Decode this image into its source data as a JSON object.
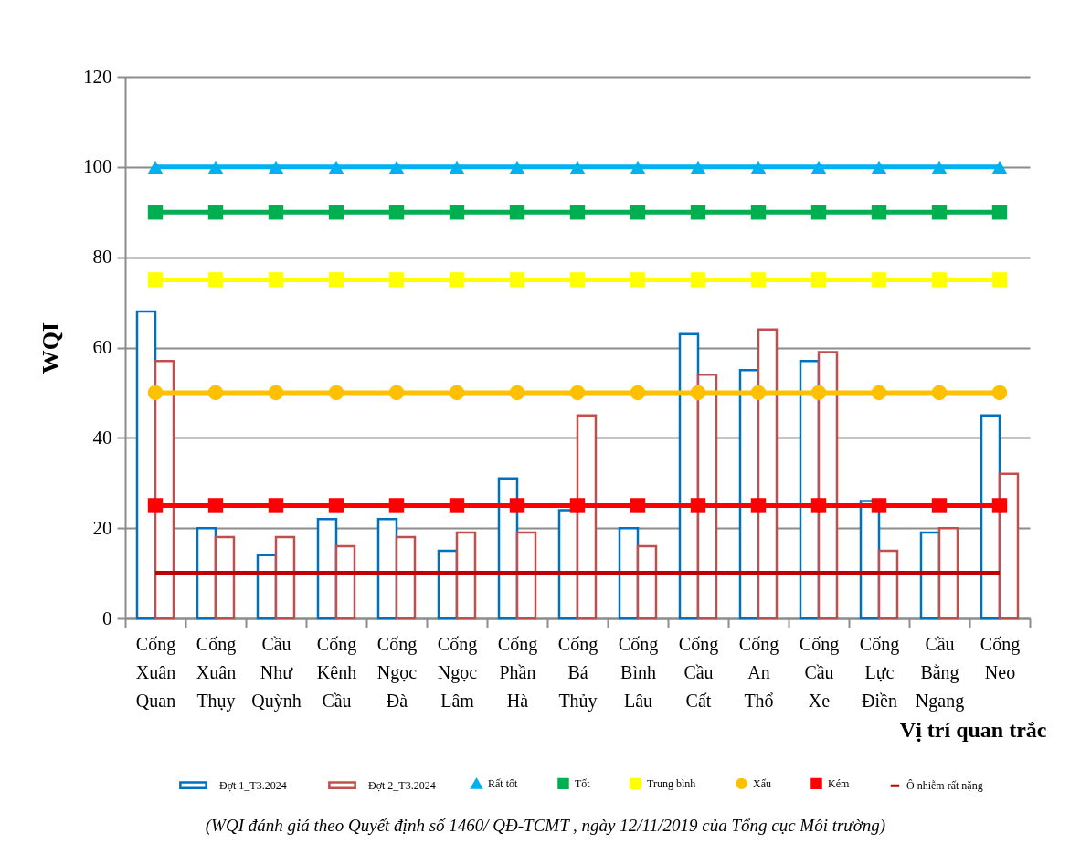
{
  "chart_data": {
    "type": "bar",
    "ylabel": "WQI",
    "xlabel": "Vị trí quan trắc",
    "categories": [
      "Cống Xuân Quan",
      "Cống Xuân Thụy",
      "Cầu Như Quỳnh",
      "Cống Kênh Cầu",
      "Cống Ngọc Đà",
      "Cống Ngọc Lâm",
      "Cống Phần Hà",
      "Cống Bá Thủy",
      "Cống Bình Lâu",
      "Cống Cầu Cất",
      "Cống An Thổ",
      "Cống Cầu Xe",
      "Cống Lực Điền",
      "Cầu Bằng Ngang",
      "Cống Neo"
    ],
    "series": [
      {
        "name": "Đợt 1_T3.2024",
        "color": "#0070c0",
        "values": [
          68,
          20,
          14,
          22,
          22,
          15,
          31,
          24,
          20,
          63,
          55,
          57,
          26,
          19,
          45
        ]
      },
      {
        "name": "Đợt 2_T3.2024",
        "color": "#c0504d",
        "values": [
          57,
          18,
          18,
          16,
          18,
          19,
          19,
          45,
          16,
          54,
          64,
          59,
          15,
          20,
          32
        ]
      },
      {
        "name": "Rất tốt",
        "type": "line",
        "color": "#00b0f0",
        "marker": "triangle",
        "values": [
          100,
          100,
          100,
          100,
          100,
          100,
          100,
          100,
          100,
          100,
          100,
          100,
          100,
          100,
          100
        ]
      },
      {
        "name": "Tốt",
        "type": "line",
        "color": "#00b050",
        "marker": "square",
        "values": [
          90,
          90,
          90,
          90,
          90,
          90,
          90,
          90,
          90,
          90,
          90,
          90,
          90,
          90,
          90
        ]
      },
      {
        "name": "Trung bình",
        "type": "line",
        "color": "#ffff00",
        "marker": "square",
        "values": [
          75,
          75,
          75,
          75,
          75,
          75,
          75,
          75,
          75,
          75,
          75,
          75,
          75,
          75,
          75
        ]
      },
      {
        "name": "Xấu",
        "type": "line",
        "color": "#ffc000",
        "marker": "circle",
        "values": [
          50,
          50,
          50,
          50,
          50,
          50,
          50,
          50,
          50,
          50,
          50,
          50,
          50,
          50,
          50
        ]
      },
      {
        "name": "Kém",
        "type": "line",
        "color": "#ff0000",
        "marker": "square",
        "values": [
          25,
          25,
          25,
          25,
          25,
          25,
          25,
          25,
          25,
          25,
          25,
          25,
          25,
          25,
          25
        ]
      },
      {
        "name": "Ô nhiễm rất nặng",
        "type": "line",
        "color": "#c00000",
        "marker": "none",
        "values": [
          10,
          10,
          10,
          10,
          10,
          10,
          10,
          10,
          10,
          10,
          10,
          10,
          10,
          10,
          10
        ]
      }
    ],
    "ylim": [
      0,
      120
    ],
    "yticks": [
      0,
      20,
      40,
      60,
      80,
      100,
      120
    ],
    "grid": "y",
    "legend": "bottom",
    "annotations": [
      "(WQI đánh giá theo Quyết định số 1460/ QĐ-TCMT , ngày 12/11/2019 của Tổng cục Môi trường)"
    ]
  }
}
